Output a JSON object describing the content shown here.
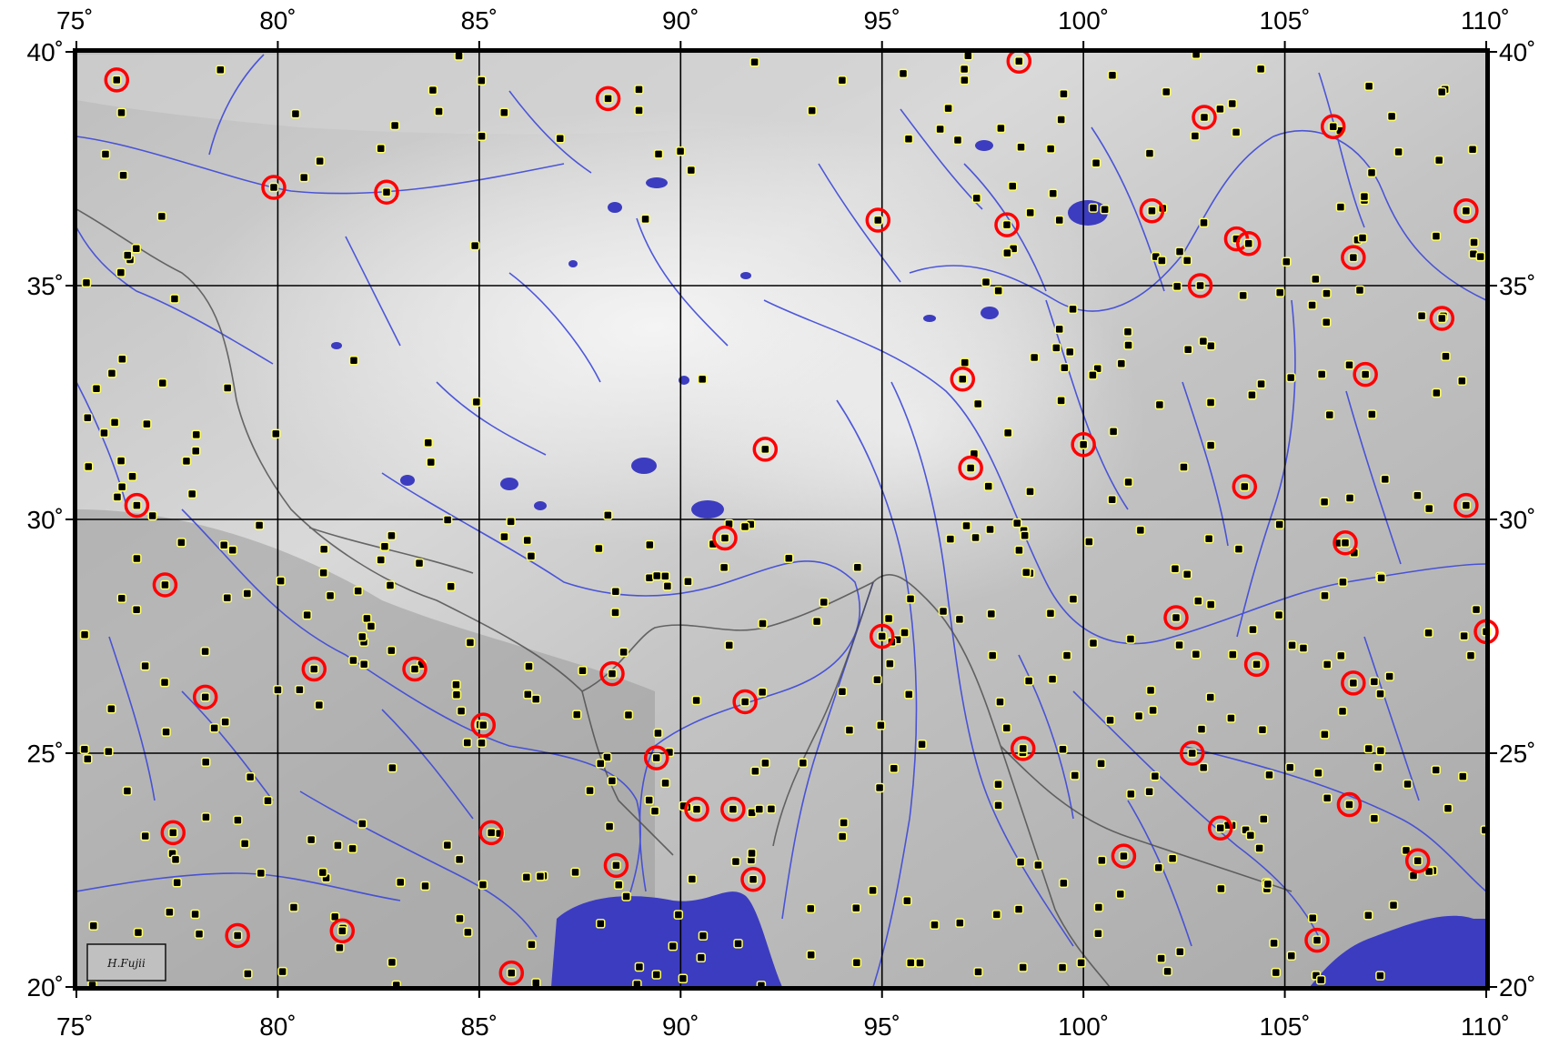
{
  "map": {
    "lon_range": [
      75,
      110
    ],
    "lat_range": [
      20,
      40
    ],
    "grid": true,
    "lon_ticks": [
      {
        "value": 75,
        "label": "75˚"
      },
      {
        "value": 80,
        "label": "80˚"
      },
      {
        "value": 85,
        "label": "85˚"
      },
      {
        "value": 90,
        "label": "90˚"
      },
      {
        "value": 95,
        "label": "95˚"
      },
      {
        "value": 100,
        "label": "100˚"
      },
      {
        "value": 105,
        "label": "105˚"
      },
      {
        "value": 110,
        "label": "110˚"
      }
    ],
    "lat_ticks": [
      {
        "value": 20,
        "label": "20˚"
      },
      {
        "value": 25,
        "label": "25˚"
      },
      {
        "value": 30,
        "label": "30˚"
      },
      {
        "value": 35,
        "label": "35˚"
      },
      {
        "value": 40,
        "label": "40˚"
      }
    ],
    "colors": {
      "relief_dark": "#8c8c8c",
      "relief_light": "#f2f2f2",
      "water": "#3c3cc0",
      "rivers": "#3d48d8",
      "borders": "#4a4a4a",
      "grid": "#000000",
      "circle_marker": "#ff0000",
      "station_fill": "#000000",
      "station_outline": "#ffff66"
    },
    "signature": "H.Fujii",
    "highlighted_sites": [
      {
        "lon": 76.0,
        "lat": 39.4
      },
      {
        "lon": 88.2,
        "lat": 39.0
      },
      {
        "lon": 98.4,
        "lat": 39.8
      },
      {
        "lon": 103.0,
        "lat": 38.6
      },
      {
        "lon": 106.2,
        "lat": 38.4
      },
      {
        "lon": 79.9,
        "lat": 37.1
      },
      {
        "lon": 82.7,
        "lat": 37.0
      },
      {
        "lon": 94.9,
        "lat": 36.4
      },
      {
        "lon": 98.1,
        "lat": 36.3
      },
      {
        "lon": 101.7,
        "lat": 36.6
      },
      {
        "lon": 103.8,
        "lat": 36.0
      },
      {
        "lon": 104.1,
        "lat": 35.9
      },
      {
        "lon": 109.5,
        "lat": 36.6
      },
      {
        "lon": 106.7,
        "lat": 35.6
      },
      {
        "lon": 102.9,
        "lat": 35.0
      },
      {
        "lon": 108.9,
        "lat": 34.3
      },
      {
        "lon": 97.0,
        "lat": 33.0
      },
      {
        "lon": 107.0,
        "lat": 33.1
      },
      {
        "lon": 92.1,
        "lat": 31.5
      },
      {
        "lon": 97.2,
        "lat": 31.1
      },
      {
        "lon": 100.0,
        "lat": 31.6
      },
      {
        "lon": 104.0,
        "lat": 30.7
      },
      {
        "lon": 76.5,
        "lat": 30.3
      },
      {
        "lon": 109.5,
        "lat": 30.3
      },
      {
        "lon": 91.1,
        "lat": 29.6
      },
      {
        "lon": 106.5,
        "lat": 29.5
      },
      {
        "lon": 77.2,
        "lat": 28.6
      },
      {
        "lon": 102.3,
        "lat": 27.9
      },
      {
        "lon": 110.0,
        "lat": 27.6
      },
      {
        "lon": 95.0,
        "lat": 27.5
      },
      {
        "lon": 80.9,
        "lat": 26.8
      },
      {
        "lon": 83.4,
        "lat": 26.8
      },
      {
        "lon": 88.3,
        "lat": 26.7
      },
      {
        "lon": 104.3,
        "lat": 26.9
      },
      {
        "lon": 78.2,
        "lat": 26.2
      },
      {
        "lon": 91.6,
        "lat": 26.1
      },
      {
        "lon": 106.7,
        "lat": 26.5
      },
      {
        "lon": 85.1,
        "lat": 25.6
      },
      {
        "lon": 89.4,
        "lat": 24.9
      },
      {
        "lon": 98.5,
        "lat": 25.1
      },
      {
        "lon": 102.7,
        "lat": 25.0
      },
      {
        "lon": 90.4,
        "lat": 23.8
      },
      {
        "lon": 91.3,
        "lat": 23.8
      },
      {
        "lon": 106.6,
        "lat": 23.9
      },
      {
        "lon": 77.4,
        "lat": 23.3
      },
      {
        "lon": 85.3,
        "lat": 23.3
      },
      {
        "lon": 103.4,
        "lat": 23.4
      },
      {
        "lon": 88.4,
        "lat": 22.6
      },
      {
        "lon": 101.0,
        "lat": 22.8
      },
      {
        "lon": 108.3,
        "lat": 22.7
      },
      {
        "lon": 91.8,
        "lat": 22.3
      },
      {
        "lon": 79.0,
        "lat": 21.1
      },
      {
        "lon": 81.6,
        "lat": 21.2
      },
      {
        "lon": 85.8,
        "lat": 20.3
      },
      {
        "lon": 105.8,
        "lat": 21.0
      }
    ]
  }
}
